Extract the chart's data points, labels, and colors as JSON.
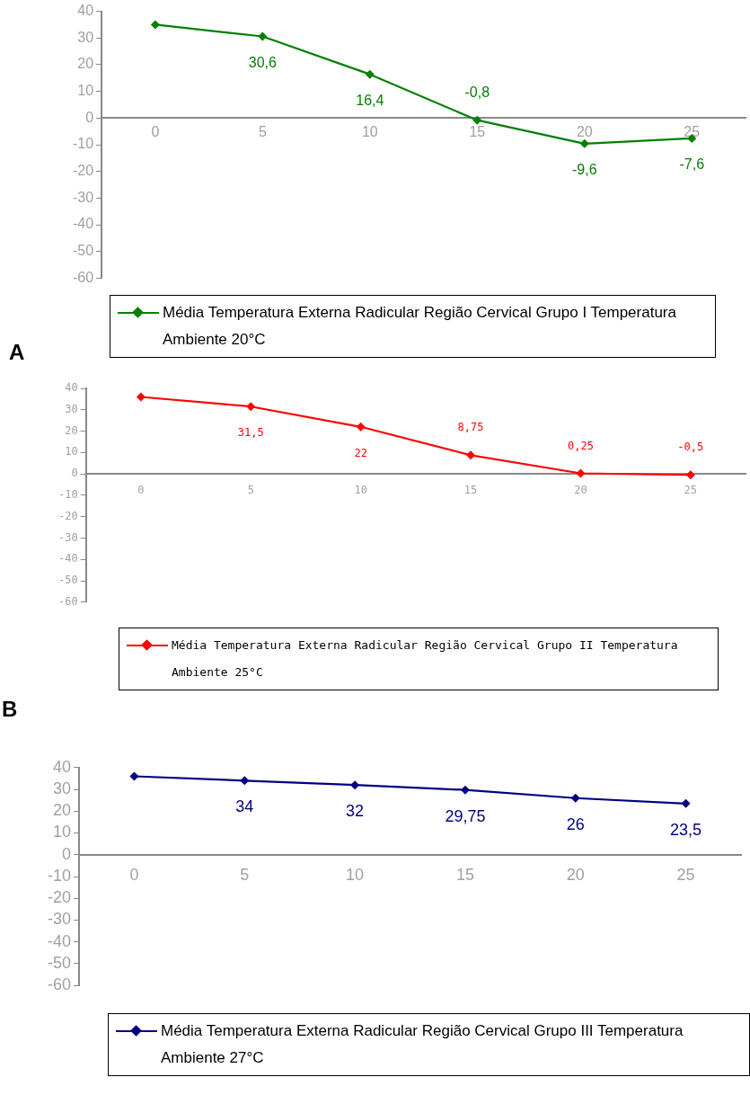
{
  "chart_data": [
    {
      "type": "line",
      "categories": [
        "0",
        "5",
        "10",
        "15",
        "20",
        "25"
      ],
      "series": [
        {
          "name": "Média Temperatura Externa Radicular Região Cervical Grupo I Temperatura Ambiente 20°C",
          "color": "#008000",
          "values": [
            35,
            30.6,
            16.4,
            -0.8,
            -9.6,
            -7.6
          ],
          "value_labels": [
            null,
            "30,6",
            "16,4",
            "-0,8",
            "-9,6",
            "-7,6"
          ]
        }
      ],
      "ylim": [
        -60,
        40
      ],
      "yticks": [
        -60,
        -50,
        -40,
        -30,
        -20,
        -10,
        0,
        10,
        20,
        30,
        40
      ],
      "grid": false,
      "legend": "bottom",
      "marker": "diamond",
      "line_style": "solid",
      "annotations": [
        "A"
      ]
    },
    {
      "type": "line",
      "categories": [
        "0",
        "5",
        "10",
        "15",
        "20",
        "25"
      ],
      "series": [
        {
          "name": "Média Temperatura Externa Radicular Região Cervical Grupo II Temperatura Ambiente 25°C",
          "color": "#ff0000",
          "values": [
            36,
            31.5,
            22,
            8.75,
            0.25,
            -0.5
          ],
          "value_labels": [
            null,
            "31,5",
            "22",
            "8,75",
            "0,25",
            "-0,5"
          ]
        }
      ],
      "ylim": [
        -60,
        40
      ],
      "yticks": [
        -60,
        -50,
        -40,
        -30,
        -20,
        -10,
        0,
        10,
        20,
        30,
        40
      ],
      "grid": false,
      "legend": "bottom",
      "marker": "diamond",
      "line_style": "solid",
      "annotations": [
        "B"
      ]
    },
    {
      "type": "line",
      "categories": [
        "0",
        "5",
        "10",
        "15",
        "20",
        "25"
      ],
      "series": [
        {
          "name": "Média Temperatura Externa Radicular Região Cervical Grupo III Temperatura Ambiente 27°C",
          "color": "#000080",
          "values": [
            36,
            34,
            32,
            29.75,
            26,
            23.5
          ],
          "value_labels": [
            null,
            "34",
            "32",
            "29,75",
            "26",
            "23,5"
          ]
        }
      ],
      "ylim": [
        -60,
        40
      ],
      "yticks": [
        -60,
        -50,
        -40,
        -30,
        -20,
        -10,
        0,
        10,
        20,
        30,
        40
      ],
      "grid": false,
      "legend": "bottom",
      "marker": "diamond",
      "line_style": "solid"
    }
  ]
}
